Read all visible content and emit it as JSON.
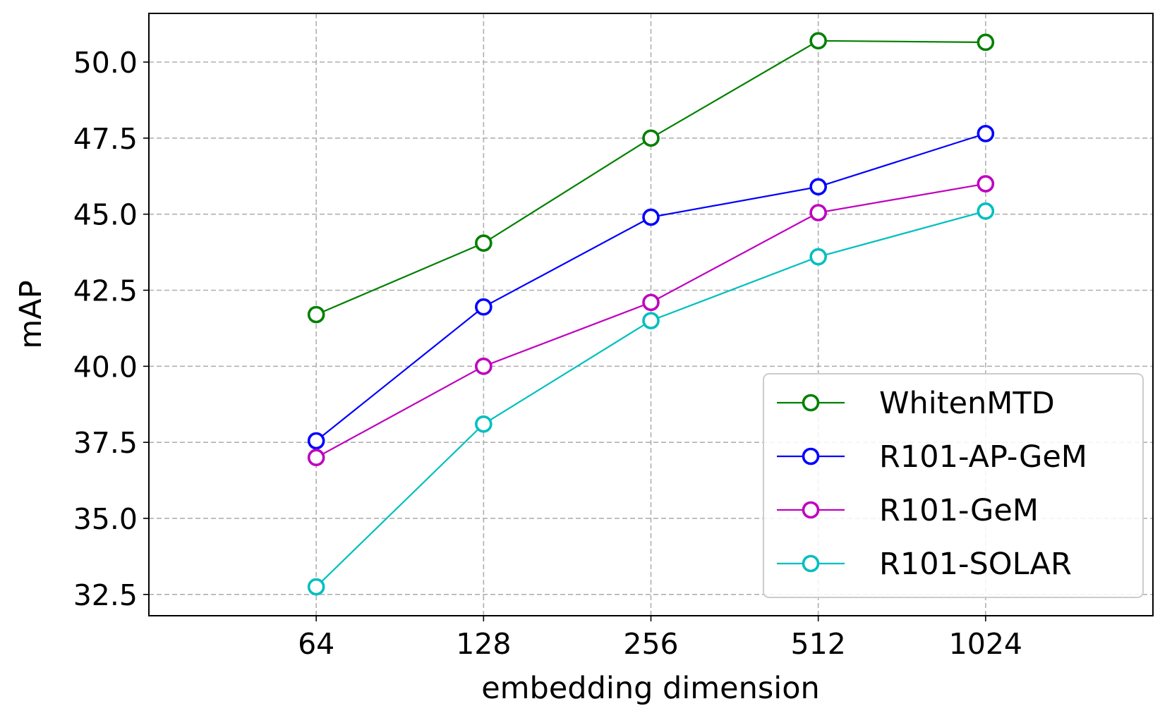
{
  "chart_data": {
    "type": "line",
    "title": "",
    "xlabel": "embedding dimension",
    "ylabel": "mAP",
    "categories": [
      "64",
      "128",
      "256",
      "512",
      "1024"
    ],
    "yticks": [
      "32.5",
      "35.0",
      "37.5",
      "40.0",
      "42.5",
      "45.0",
      "47.5",
      "50.0"
    ],
    "ylim": [
      31.8,
      51.6
    ],
    "xlim": [
      -1.0,
      5.0
    ],
    "grid": true,
    "legend_position": "lower-right",
    "series": [
      {
        "name": "WhitenMTD",
        "color": "#008000",
        "values": [
          41.7,
          44.05,
          47.5,
          50.7,
          50.65
        ]
      },
      {
        "name": "R101-AP-GeM",
        "color": "#0000ff",
        "values": [
          37.55,
          41.95,
          44.9,
          45.9,
          47.65
        ]
      },
      {
        "name": "R101-GeM",
        "color": "#bf00bf",
        "values": [
          37.0,
          40.0,
          42.1,
          45.05,
          46.0
        ]
      },
      {
        "name": "R101-SOLAR",
        "color": "#00bfbf",
        "values": [
          32.75,
          38.1,
          41.5,
          43.6,
          45.1
        ]
      }
    ]
  }
}
